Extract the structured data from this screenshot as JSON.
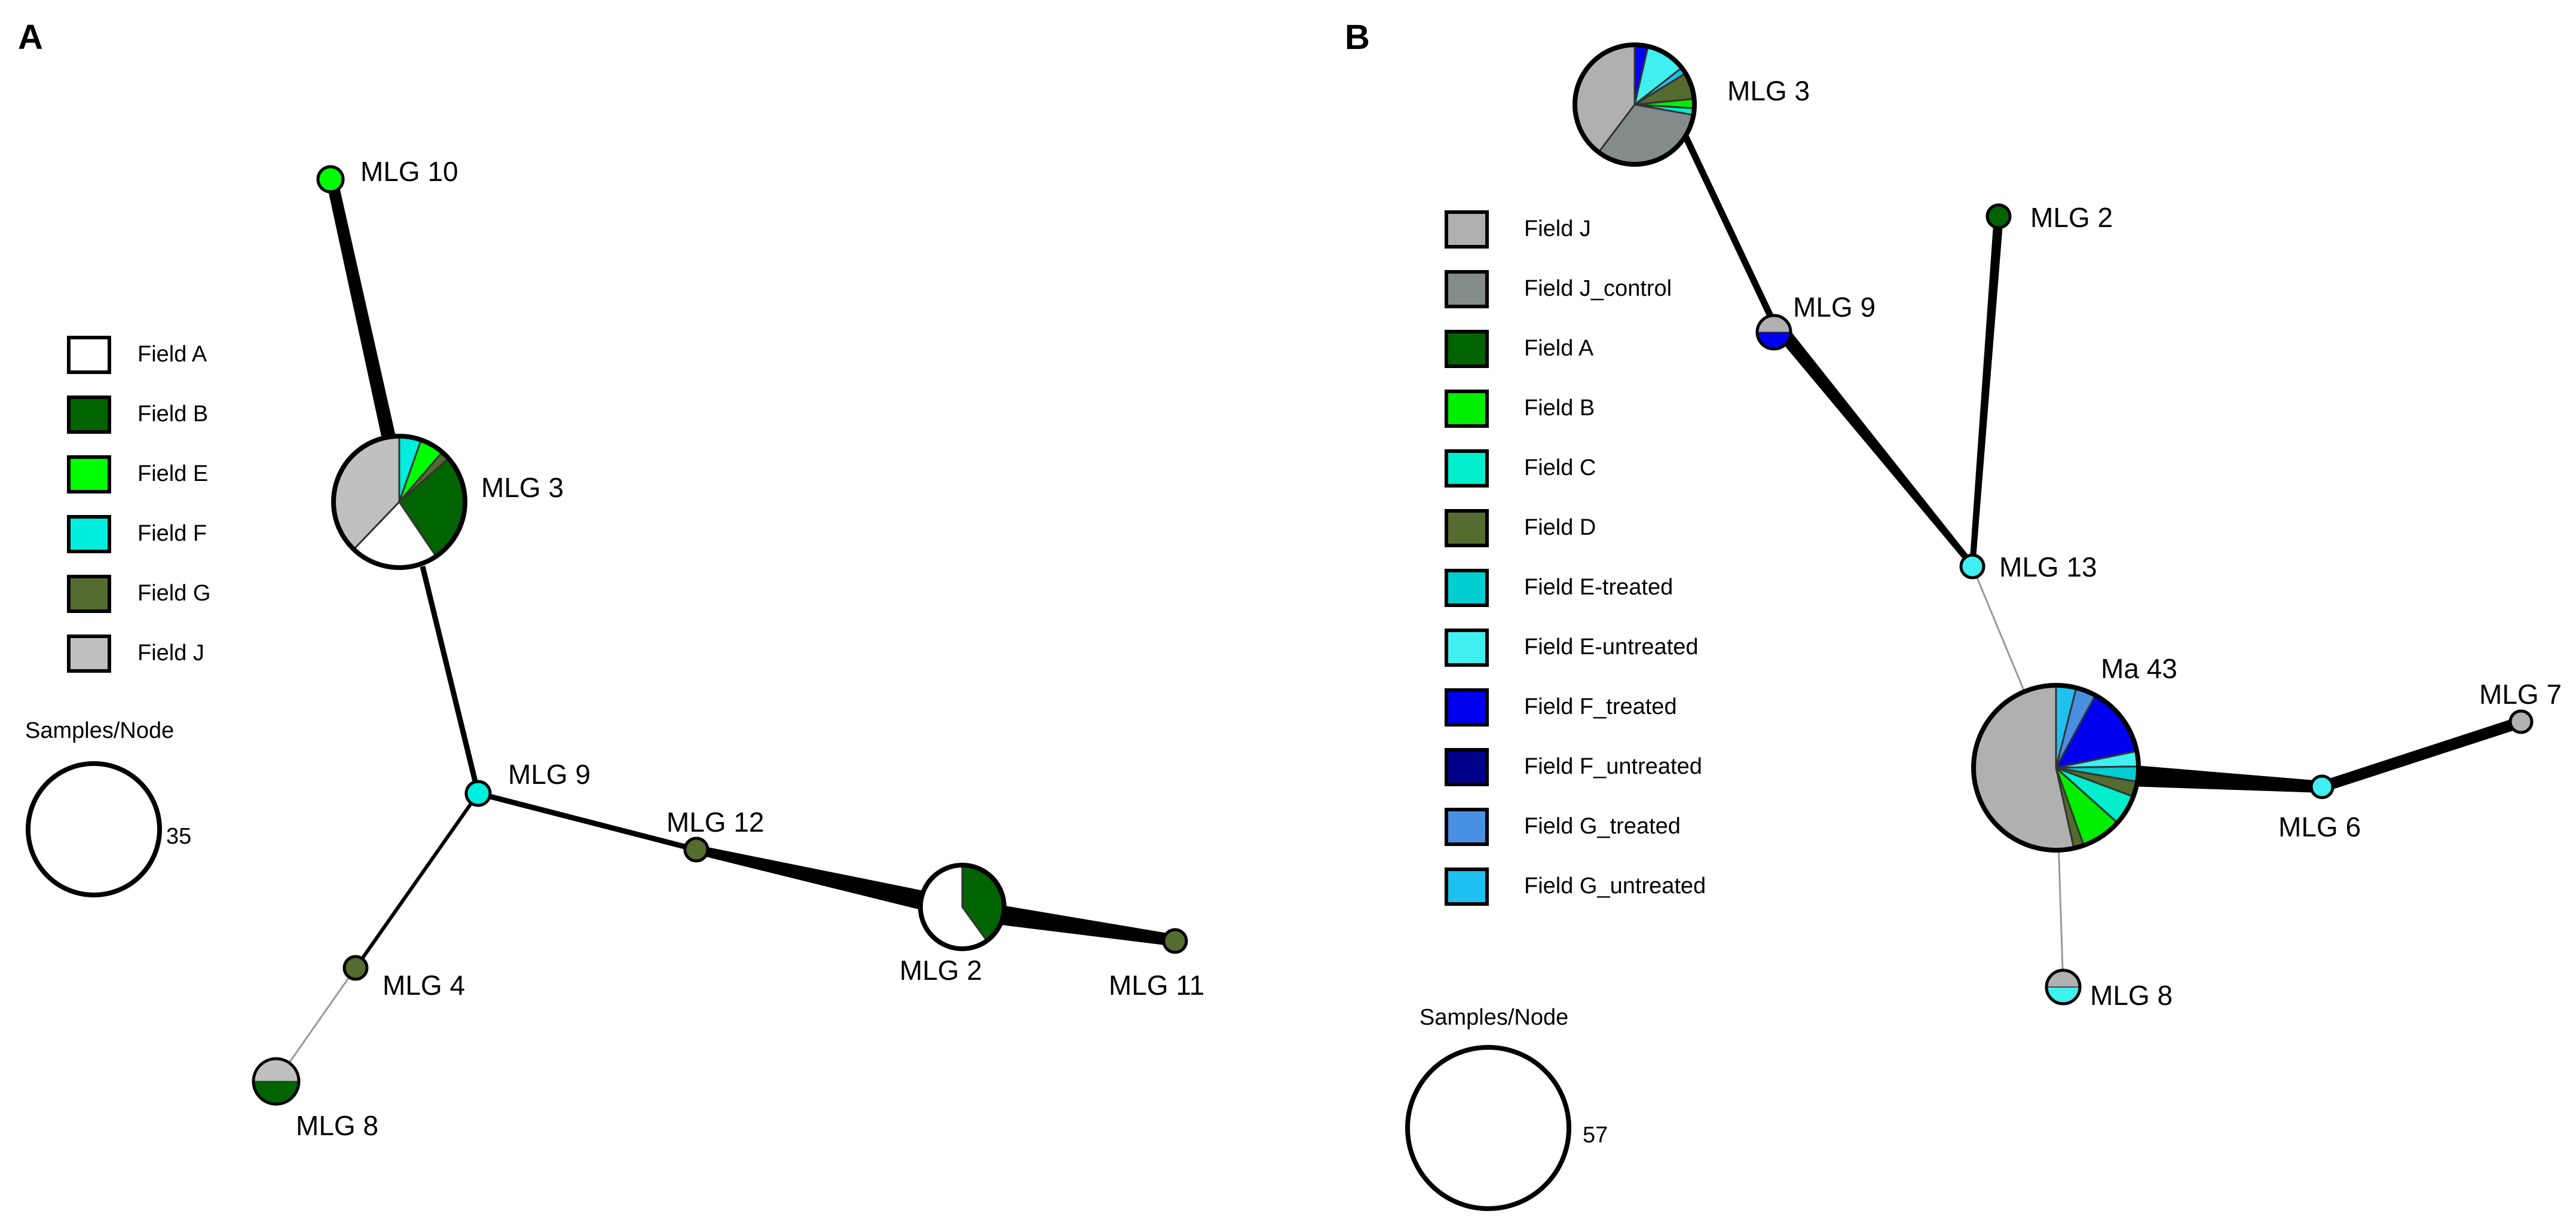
{
  "panel_a": {
    "letter": "A",
    "legend": [
      {
        "label": "Field A",
        "color": "#ffffff"
      },
      {
        "label": "Field B",
        "color": "#006400"
      },
      {
        "label": "Field E",
        "color": "#00ff00"
      },
      {
        "label": "Field F",
        "color": "#00eedd"
      },
      {
        "label": "Field G",
        "color": "#556b2f"
      },
      {
        "label": "Field J",
        "color": "#c0c0c0"
      }
    ],
    "scale": {
      "title": "Samples/Node",
      "value": "35"
    },
    "nodes": [
      {
        "id": "MLG 10",
        "label": "MLG 10",
        "slices": [
          {
            "color": "#00ff00",
            "value": 1
          }
        ]
      },
      {
        "id": "MLG 3",
        "label": "MLG 3",
        "slices": [
          {
            "color": "#00eedd",
            "value": 1
          },
          {
            "color": "#00ff00",
            "value": 1.1
          },
          {
            "color": "#556b2f",
            "value": 0.4
          },
          {
            "color": "#006400",
            "value": 5
          },
          {
            "color": "#ffffff",
            "value": 4
          },
          {
            "color": "#c0c0c0",
            "value": 7
          }
        ]
      },
      {
        "id": "MLG 9",
        "label": "MLG 9",
        "slices": [
          {
            "color": "#00eedd",
            "value": 1
          }
        ]
      },
      {
        "id": "MLG 12",
        "label": "MLG 12",
        "slices": [
          {
            "color": "#556b2f",
            "value": 1
          }
        ]
      },
      {
        "id": "MLG 2",
        "label": "MLG 2",
        "slices": [
          {
            "color": "#006400",
            "value": 4
          },
          {
            "color": "#ffffff",
            "value": 6
          }
        ]
      },
      {
        "id": "MLG 11",
        "label": "MLG 11",
        "slices": [
          {
            "color": "#556b2f",
            "value": 1
          }
        ]
      },
      {
        "id": "MLG 4",
        "label": "MLG 4",
        "slices": [
          {
            "color": "#556b2f",
            "value": 1
          }
        ]
      },
      {
        "id": "MLG 8",
        "label": "MLG 8",
        "slices": [
          {
            "color": "#006400",
            "value": 1
          },
          {
            "color": "#c0c0c0",
            "value": 1
          }
        ]
      }
    ],
    "edges": [
      {
        "from": "MLG 10",
        "to": "MLG 3",
        "weight": "thick"
      },
      {
        "from": "MLG 3",
        "to": "MLG 9",
        "weight": "medium"
      },
      {
        "from": "MLG 9",
        "to": "MLG 12",
        "weight": "medium"
      },
      {
        "from": "MLG 12",
        "to": "MLG 2",
        "weight": "thick"
      },
      {
        "from": "MLG 2",
        "to": "MLG 11",
        "weight": "thick"
      },
      {
        "from": "MLG 9",
        "to": "MLG 4",
        "weight": "thin"
      },
      {
        "from": "MLG 4",
        "to": "MLG 8",
        "weight": "faint"
      }
    ]
  },
  "panel_b": {
    "letter": "B",
    "legend": [
      {
        "label": "Field J",
        "color": "#b0b0b0"
      },
      {
        "label": "Field J_control",
        "color": "#838b8b"
      },
      {
        "label": "Field A",
        "color": "#006400"
      },
      {
        "label": "Field B",
        "color": "#00ee00"
      },
      {
        "label": "Field C",
        "color": "#00eecc"
      },
      {
        "label": "Field D",
        "color": "#556b2f"
      },
      {
        "label": "Field E-treated",
        "color": "#00ced1"
      },
      {
        "label": "Field E-untreated",
        "color": "#40f0f0"
      },
      {
        "label": "Field F_treated",
        "color": "#0000ee"
      },
      {
        "label": "Field F_untreated",
        "color": "#00008b"
      },
      {
        "label": "Field G_treated",
        "color": "#4a90e2"
      },
      {
        "label": "Field G_untreated",
        "color": "#1ec0f0"
      }
    ],
    "scale": {
      "title": "Samples/Node",
      "value": "57"
    },
    "nodes": [
      {
        "id": "MLG 3",
        "label": "MLG 3",
        "slices": [
          {
            "color": "#0000ee",
            "value": 1
          },
          {
            "color": "#40f0f0",
            "value": 3
          },
          {
            "color": "#1ec0f0",
            "value": 0.5
          },
          {
            "color": "#556b2f",
            "value": 2
          },
          {
            "color": "#00ee00",
            "value": 0.7
          },
          {
            "color": "#00eecc",
            "value": 0.5
          },
          {
            "color": "#838b8b",
            "value": 9
          },
          {
            "color": "#b0b0b0",
            "value": 11
          }
        ]
      },
      {
        "id": "MLG 2",
        "label": "MLG 2",
        "slices": [
          {
            "color": "#006400",
            "value": 1
          }
        ]
      },
      {
        "id": "MLG 9",
        "label": "MLG 9",
        "slices": [
          {
            "color": "#0000ee",
            "value": 1
          },
          {
            "color": "#b0b0b0",
            "value": 1
          }
        ]
      },
      {
        "id": "MLG 13",
        "label": "MLG 13",
        "slices": [
          {
            "color": "#40f0f0",
            "value": 1
          }
        ]
      },
      {
        "id": "Ma 43",
        "label": "Ma 43",
        "slices": [
          {
            "color": "#1ec0f0",
            "value": 2
          },
          {
            "color": "#4a90e2",
            "value": 2
          },
          {
            "color": "#0000ee",
            "value": 7
          },
          {
            "color": "#40f0f0",
            "value": 1.5
          },
          {
            "color": "#00ced1",
            "value": 1.5
          },
          {
            "color": "#556b2f",
            "value": 1.5
          },
          {
            "color": "#00eecc",
            "value": 3
          },
          {
            "color": "#00ee00",
            "value": 4
          },
          {
            "color": "#556b2f",
            "value": 1
          },
          {
            "color": "#b0b0b0",
            "value": 27
          }
        ]
      },
      {
        "id": "MLG 7",
        "label": "MLG 7",
        "slices": [
          {
            "color": "#b0b0b0",
            "value": 1
          }
        ]
      },
      {
        "id": "MLG 6",
        "label": "MLG 6",
        "slices": [
          {
            "color": "#40f0f0",
            "value": 1
          }
        ]
      },
      {
        "id": "MLG 8",
        "label": "MLG 8",
        "slices": [
          {
            "color": "#40f0f0",
            "value": 1
          },
          {
            "color": "#b0b0b0",
            "value": 1
          }
        ]
      }
    ],
    "edges": [
      {
        "from": "MLG 3",
        "to": "MLG 9",
        "weight": "medium"
      },
      {
        "from": "MLG 9",
        "to": "MLG 13",
        "weight": "thick"
      },
      {
        "from": "MLG 2",
        "to": "MLG 13",
        "weight": "medium"
      },
      {
        "from": "MLG 13",
        "to": "Ma 43",
        "weight": "faint"
      },
      {
        "from": "Ma 43",
        "to": "MLG 6",
        "weight": "thick"
      },
      {
        "from": "MLG 6",
        "to": "MLG 7",
        "weight": "thick"
      },
      {
        "from": "Ma 43",
        "to": "MLG 8",
        "weight": "faint"
      }
    ]
  }
}
